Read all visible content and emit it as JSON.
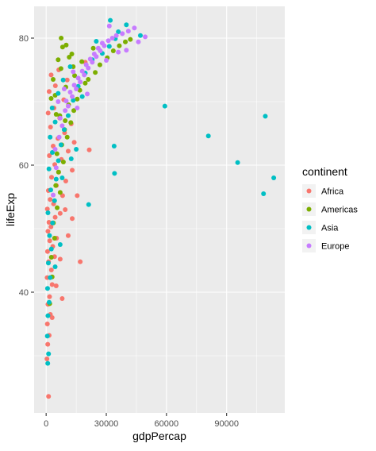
{
  "chart_data": {
    "type": "scatter",
    "xlabel": "gdpPercap",
    "ylabel": "lifeExp",
    "xlim": [
      -6000,
      119000
    ],
    "ylim": [
      21,
      85
    ],
    "x_ticks": [
      0,
      30000,
      60000,
      90000
    ],
    "x_tick_labels": [
      "0",
      "30000",
      "60000",
      "90000"
    ],
    "y_ticks": [
      40,
      60,
      80
    ],
    "y_tick_labels": [
      "40",
      "60",
      "80"
    ],
    "grid": true,
    "legend": {
      "title": "continent",
      "position": "right"
    },
    "series": [
      {
        "name": "Africa",
        "color": "#F8766D",
        "points": [
          [
            1200,
            23.6
          ],
          [
            400,
            29.5
          ],
          [
            800,
            31.8
          ],
          [
            1500,
            33.2
          ],
          [
            600,
            35.0
          ],
          [
            2100,
            36.5
          ],
          [
            900,
            38.1
          ],
          [
            1700,
            39.3
          ],
          [
            3000,
            41.2
          ],
          [
            500,
            42.3
          ],
          [
            2600,
            43.5
          ],
          [
            1200,
            44.8
          ],
          [
            4200,
            45.6
          ],
          [
            700,
            46.4
          ],
          [
            3300,
            47.2
          ],
          [
            1800,
            48.1
          ],
          [
            5200,
            48.5
          ],
          [
            900,
            49.6
          ],
          [
            2400,
            50.3
          ],
          [
            1400,
            51.0
          ],
          [
            4500,
            51.8
          ],
          [
            7000,
            52.4
          ],
          [
            600,
            53.1
          ],
          [
            3700,
            53.9
          ],
          [
            2000,
            54.6
          ],
          [
            8200,
            55.2
          ],
          [
            1100,
            56.0
          ],
          [
            5100,
            56.8
          ],
          [
            9800,
            57.5
          ],
          [
            2700,
            58.1
          ],
          [
            6200,
            58.9
          ],
          [
            13000,
            59.2
          ],
          [
            4300,
            60.1
          ],
          [
            7600,
            60.9
          ],
          [
            1600,
            61.5
          ],
          [
            11000,
            62.2
          ],
          [
            21500,
            62.4
          ],
          [
            3500,
            63.0
          ],
          [
            14000,
            63.6
          ],
          [
            5900,
            64.2
          ],
          [
            9200,
            65.1
          ],
          [
            2200,
            66.0
          ],
          [
            12500,
            66.5
          ],
          [
            6800,
            67.4
          ],
          [
            1000,
            68.2
          ],
          [
            3900,
            69.0
          ],
          [
            8800,
            70.3
          ],
          [
            1500,
            71.6
          ],
          [
            4600,
            72.5
          ],
          [
            10500,
            73.4
          ],
          [
            2500,
            74.2
          ],
          [
            6300,
            75.0
          ],
          [
            19500,
            76.2
          ],
          [
            15500,
            55.2
          ],
          [
            11000,
            48.9
          ],
          [
            17000,
            44.8
          ],
          [
            9500,
            53.0
          ],
          [
            13000,
            51.6
          ],
          [
            7000,
            45.2
          ],
          [
            5000,
            41.0
          ],
          [
            8000,
            39.0
          ],
          [
            3000,
            36.0
          ]
        ]
      },
      {
        "name": "Americas",
        "color": "#7CAE00",
        "points": [
          [
            1800,
            38.2
          ],
          [
            3000,
            42.4
          ],
          [
            2600,
            45.5
          ],
          [
            4200,
            48.5
          ],
          [
            3600,
            50.9
          ],
          [
            5500,
            53.3
          ],
          [
            7000,
            55.7
          ],
          [
            4800,
            56.8
          ],
          [
            6200,
            58.9
          ],
          [
            8600,
            60.5
          ],
          [
            5400,
            61.8
          ],
          [
            7800,
            63.2
          ],
          [
            10500,
            64.4
          ],
          [
            9200,
            65.6
          ],
          [
            12300,
            66.7
          ],
          [
            6800,
            67.8
          ],
          [
            13800,
            68.6
          ],
          [
            11200,
            69.5
          ],
          [
            15500,
            70.4
          ],
          [
            4500,
            71.0
          ],
          [
            16800,
            71.8
          ],
          [
            9800,
            72.3
          ],
          [
            19500,
            72.9
          ],
          [
            21000,
            73.5
          ],
          [
            14200,
            74.1
          ],
          [
            24500,
            74.6
          ],
          [
            7400,
            75.2
          ],
          [
            26800,
            75.8
          ],
          [
            17800,
            76.3
          ],
          [
            30500,
            76.9
          ],
          [
            12800,
            77.5
          ],
          [
            33500,
            78.0
          ],
          [
            23500,
            78.4
          ],
          [
            36500,
            78.8
          ],
          [
            39500,
            79.4
          ],
          [
            42000,
            79.8
          ],
          [
            8200,
            78.6
          ],
          [
            11500,
            77.0
          ],
          [
            6000,
            76.6
          ],
          [
            3500,
            73.5
          ],
          [
            2500,
            70.5
          ],
          [
            5000,
            68.0
          ],
          [
            9500,
            67.0
          ],
          [
            13500,
            75.5
          ],
          [
            10000,
            78.9
          ],
          [
            7500,
            80.0
          ]
        ]
      },
      {
        "name": "Asia",
        "color": "#00BFC4",
        "points": [
          [
            800,
            28.8
          ],
          [
            1200,
            30.3
          ],
          [
            600,
            33.1
          ],
          [
            900,
            36.3
          ],
          [
            1500,
            38.4
          ],
          [
            700,
            40.6
          ],
          [
            2000,
            42.3
          ],
          [
            1100,
            44.6
          ],
          [
            2600,
            46.8
          ],
          [
            1700,
            48.9
          ],
          [
            3200,
            50.9
          ],
          [
            900,
            52.5
          ],
          [
            4200,
            54.4
          ],
          [
            2300,
            56.1
          ],
          [
            5000,
            57.8
          ],
          [
            1400,
            59.4
          ],
          [
            6100,
            60.7
          ],
          [
            3100,
            62.0
          ],
          [
            7400,
            63.2
          ],
          [
            2000,
            64.4
          ],
          [
            9000,
            65.6
          ],
          [
            4500,
            66.8
          ],
          [
            11000,
            67.8
          ],
          [
            3000,
            69.0
          ],
          [
            13500,
            70.2
          ],
          [
            6000,
            71.3
          ],
          [
            16000,
            72.4
          ],
          [
            8500,
            73.4
          ],
          [
            19500,
            74.5
          ],
          [
            12000,
            75.5
          ],
          [
            23000,
            76.6
          ],
          [
            28000,
            77.6
          ],
          [
            31500,
            78.7
          ],
          [
            34500,
            79.9
          ],
          [
            36000,
            81.0
          ],
          [
            40000,
            82.1
          ],
          [
            32000,
            82.8
          ],
          [
            47000,
            80.4
          ],
          [
            59200,
            69.3
          ],
          [
            80900,
            64.6
          ],
          [
            95500,
            60.4
          ],
          [
            108400,
            55.5
          ],
          [
            109300,
            67.7
          ],
          [
            113500,
            58.0
          ],
          [
            33900,
            63.0
          ],
          [
            34100,
            58.7
          ],
          [
            21200,
            53.8
          ],
          [
            15000,
            62.5
          ],
          [
            12500,
            61.0
          ],
          [
            7000,
            47.5
          ],
          [
            4500,
            44.0
          ],
          [
            8000,
            58.0
          ],
          [
            18000,
            70.8
          ],
          [
            25000,
            79.5
          ]
        ]
      },
      {
        "name": "Europe",
        "color": "#C77CFF",
        "points": [
          [
            3500,
            55.3
          ],
          [
            5000,
            59.6
          ],
          [
            4500,
            62.5
          ],
          [
            6500,
            64.4
          ],
          [
            8000,
            66.2
          ],
          [
            7000,
            67.4
          ],
          [
            9500,
            68.6
          ],
          [
            11000,
            69.3
          ],
          [
            10000,
            70.1
          ],
          [
            13000,
            70.8
          ],
          [
            12000,
            71.5
          ],
          [
            15000,
            72.0
          ],
          [
            14000,
            72.6
          ],
          [
            17000,
            73.1
          ],
          [
            16000,
            73.7
          ],
          [
            19000,
            74.2
          ],
          [
            18000,
            74.8
          ],
          [
            21000,
            75.3
          ],
          [
            20000,
            75.8
          ],
          [
            23000,
            76.2
          ],
          [
            22000,
            76.7
          ],
          [
            25000,
            77.1
          ],
          [
            24000,
            77.5
          ],
          [
            27000,
            78.0
          ],
          [
            26000,
            78.4
          ],
          [
            29000,
            78.8
          ],
          [
            28000,
            79.2
          ],
          [
            31000,
            79.6
          ],
          [
            33000,
            80.0
          ],
          [
            35000,
            80.4
          ],
          [
            38000,
            80.7
          ],
          [
            41000,
            81.1
          ],
          [
            44000,
            81.6
          ],
          [
            49400,
            80.2
          ],
          [
            46000,
            79.4
          ],
          [
            36000,
            77.8
          ],
          [
            30000,
            76.5
          ],
          [
            13500,
            74.7
          ],
          [
            9000,
            72.0
          ],
          [
            6000,
            70.0
          ],
          [
            15500,
            69.0
          ],
          [
            20500,
            71.2
          ],
          [
            31500,
            81.9
          ],
          [
            40000,
            78.1
          ]
        ]
      }
    ]
  }
}
